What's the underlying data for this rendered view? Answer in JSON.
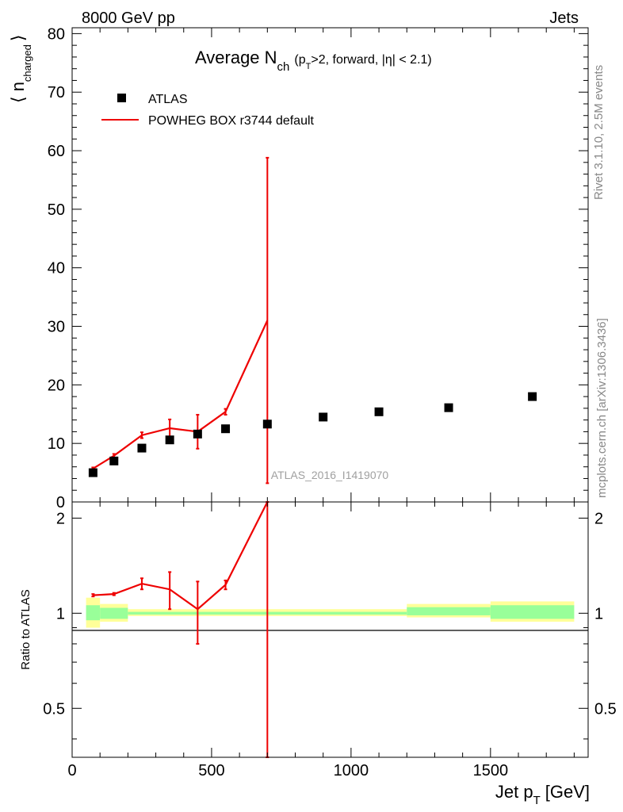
{
  "header": {
    "left": "8000 GeV pp",
    "right": "Jets"
  },
  "side_labels": {
    "rivet": "Rivet 3.1.10,  2.5M events",
    "mcplots": "mcplots.cern.ch [arXiv:1306.3436]"
  },
  "chart_data": [
    {
      "type": "scatter+line",
      "title_main": "Average N",
      "title_sub": "ch",
      "title_paren_open": "(p",
      "title_paren_sub": "T",
      "title_paren_rest": ">2, forward, |η| < 2.1)",
      "ylabel": "⟨ n",
      "ylabel_sub": "charged",
      "ylabel_close": "⟩",
      "ylim": [
        0,
        81
      ],
      "xlim": [
        0,
        1850
      ],
      "yticks": [
        0,
        10,
        20,
        30,
        40,
        50,
        60,
        70,
        80
      ],
      "ytick_labels": [
        "0",
        "10",
        "20",
        "30",
        "40",
        "50",
        "60",
        "70",
        "80"
      ],
      "watermark": "ATLAS_2016_I1419070",
      "legend": [
        {
          "label": "ATLAS",
          "marker": "square",
          "color": "#000000"
        },
        {
          "label": "POWHEG BOX r3744 default",
          "marker": "line",
          "color": "#ee0000"
        }
      ],
      "series": [
        {
          "name": "ATLAS",
          "x": [
            75,
            150,
            250,
            350,
            450,
            550,
            700,
            900,
            1100,
            1350,
            1650
          ],
          "y": [
            5.0,
            7.0,
            9.2,
            10.6,
            11.6,
            12.5,
            13.3,
            14.5,
            15.4,
            16.1,
            18.0
          ]
        },
        {
          "name": "POWHEG BOX r3744 default",
          "x": [
            75,
            150,
            250,
            350,
            450,
            550,
            700
          ],
          "y": [
            5.7,
            7.9,
            11.4,
            12.6,
            12.0,
            15.4,
            31.0
          ],
          "err": [
            0.2,
            0.3,
            0.5,
            1.5,
            2.9,
            0.5,
            27.8
          ]
        }
      ]
    },
    {
      "type": "ratio",
      "ylabel": "Ratio to ATLAS",
      "ylim": [
        0.35,
        2.25
      ],
      "yticks": [
        0.5,
        1,
        2
      ],
      "ytick_labels": [
        "0.5",
        "1",
        "2"
      ],
      "xlim": [
        0,
        1850
      ],
      "xticks": [
        0,
        500,
        1000,
        1500
      ],
      "xtick_labels": [
        "0",
        "500",
        "1000",
        "1500"
      ],
      "xlabel": "Jet p",
      "xlabel_sub": "T",
      "xlabel_unit": "[GeV]",
      "bands": [
        {
          "xlo": 50,
          "xhi": 100,
          "yellow": [
            0.9,
            1.12
          ],
          "green": [
            0.95,
            1.06
          ]
        },
        {
          "xlo": 100,
          "xhi": 200,
          "yellow": [
            0.94,
            1.07
          ],
          "green": [
            0.96,
            1.04
          ]
        },
        {
          "xlo": 200,
          "xhi": 1200,
          "yellow": [
            0.98,
            1.03
          ],
          "green": [
            0.99,
            1.01
          ]
        },
        {
          "xlo": 1200,
          "xhi": 1500,
          "yellow": [
            0.97,
            1.07
          ],
          "green": [
            0.985,
            1.045
          ]
        },
        {
          "xlo": 1500,
          "xhi": 1800,
          "yellow": [
            0.94,
            1.09
          ],
          "green": [
            0.96,
            1.06
          ]
        }
      ],
      "series": [
        {
          "name": "POWHEG BOX r3744 default",
          "x": [
            75,
            150,
            250,
            350,
            450,
            550,
            700
          ],
          "y": [
            1.14,
            1.15,
            1.24,
            1.19,
            1.03,
            1.23,
            2.33
          ],
          "err": [
            0.01,
            0.01,
            0.05,
            0.16,
            0.23,
            0.04,
            2.2
          ]
        }
      ]
    }
  ]
}
